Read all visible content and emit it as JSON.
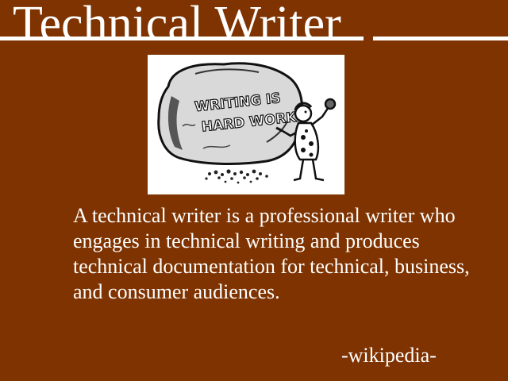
{
  "slide": {
    "title": "Technical Writer",
    "picture": {
      "icon": "caveman-carving-boulder-illustration",
      "lettering": "WRITING IS HARD WORK"
    },
    "quote": "A technical writer is a professional writer who engages in technical writing and produces technical documentation for technical, business, and consumer audiences.",
    "source": "-wikipedia-"
  },
  "colors": {
    "background": "#7f3300",
    "text": "#ffffff"
  }
}
